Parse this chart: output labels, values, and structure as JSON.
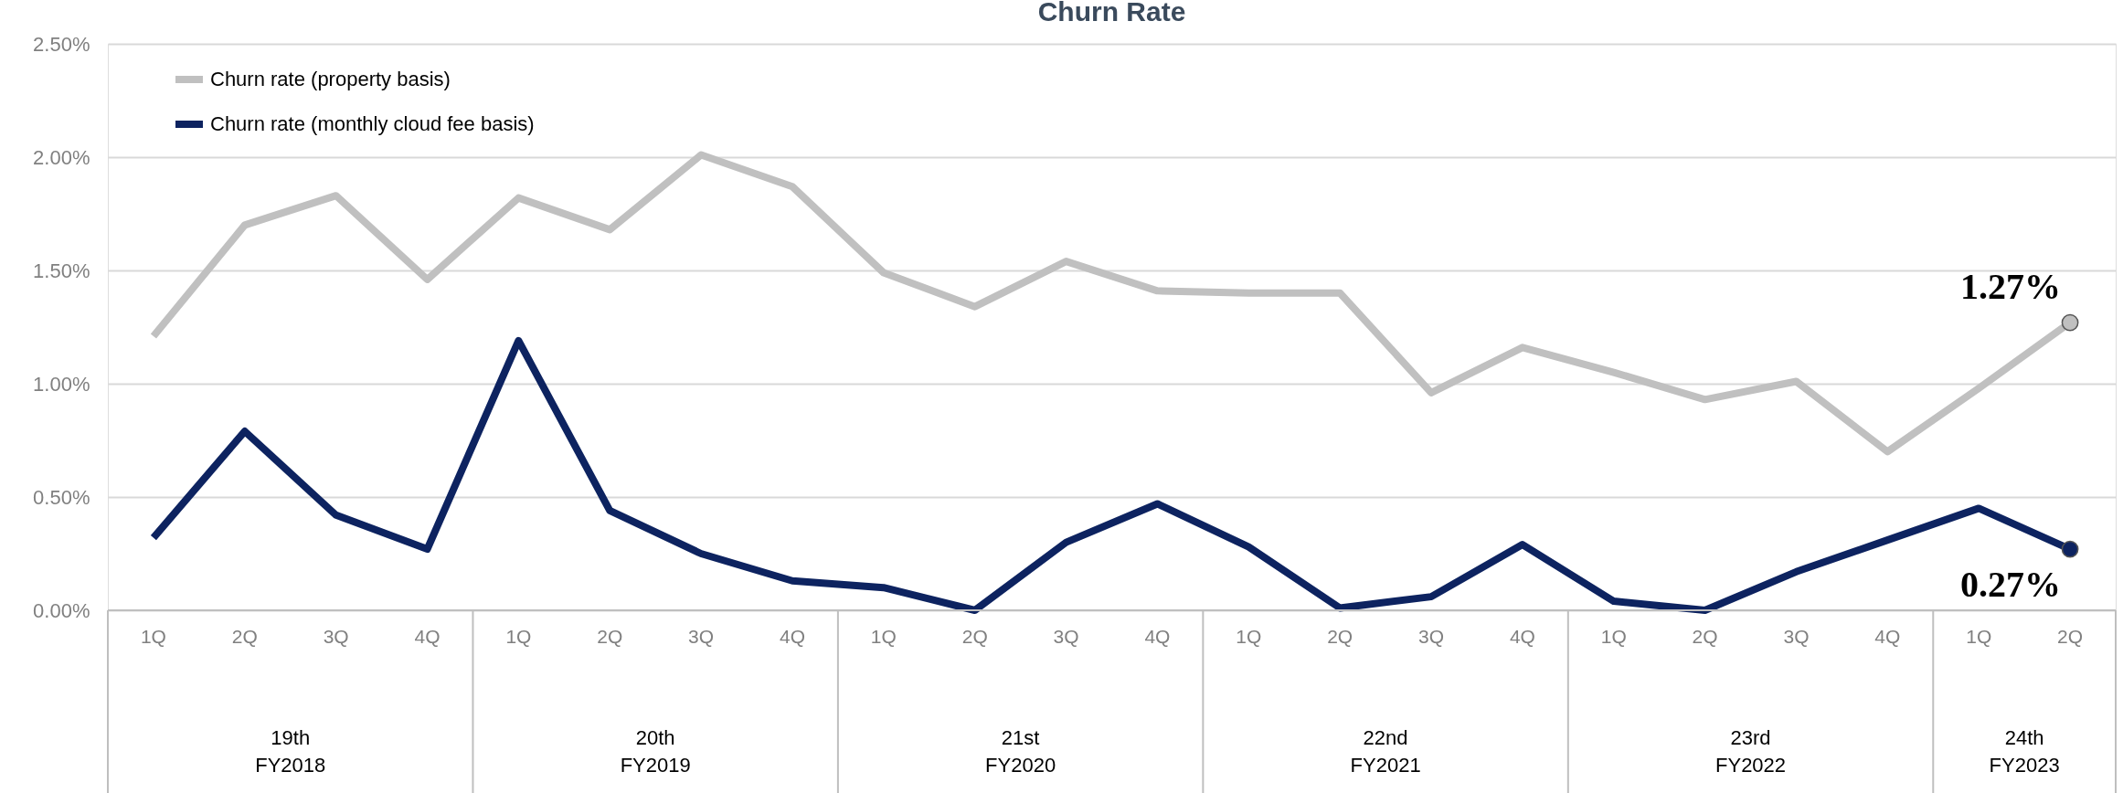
{
  "chart_data": {
    "type": "line",
    "title": "Churn Rate",
    "categories": [
      "1Q",
      "2Q",
      "3Q",
      "4Q",
      "1Q",
      "2Q",
      "3Q",
      "4Q",
      "1Q",
      "2Q",
      "3Q",
      "4Q",
      "1Q",
      "2Q",
      "3Q",
      "4Q",
      "1Q",
      "2Q",
      "3Q",
      "4Q",
      "1Q",
      "2Q"
    ],
    "annotations": [
      "19th\nFY2018",
      "20th\nFY2019",
      "21st\nFY2020",
      "22nd\nFY2021",
      "23rd\nFY2022",
      "24th\nFY2023"
    ],
    "series": [
      {
        "name": "Churn rate (property basis)",
        "color": "#c0c0c0",
        "values": [
          1.21,
          1.7,
          1.83,
          1.46,
          1.82,
          1.68,
          2.01,
          1.87,
          1.49,
          1.34,
          1.54,
          1.41,
          1.4,
          1.4,
          0.96,
          1.16,
          1.05,
          0.93,
          1.01,
          0.7,
          0.98,
          1.27
        ],
        "value_labels": [
          null,
          null,
          null,
          null,
          null,
          null,
          null,
          null,
          null,
          null,
          null,
          null,
          null,
          null,
          null,
          null,
          null,
          null,
          null,
          null,
          null,
          "1.27%"
        ]
      },
      {
        "name": "Churn rate (monthly cloud fee basis)",
        "color": "#0d2360",
        "values": [
          0.32,
          0.79,
          0.42,
          0.27,
          1.19,
          0.44,
          0.25,
          0.13,
          0.1,
          0.0,
          0.3,
          0.47,
          0.28,
          0.01,
          0.06,
          0.29,
          0.04,
          0.0,
          0.17,
          0.31,
          0.45,
          0.27
        ],
        "value_labels": [
          null,
          null,
          null,
          null,
          null,
          null,
          null,
          null,
          null,
          null,
          null,
          null,
          null,
          null,
          null,
          null,
          null,
          null,
          null,
          null,
          null,
          "0.27%"
        ]
      }
    ],
    "ylim": [
      0,
      2.5
    ],
    "yticks": [
      {
        "value": 0,
        "label": "0.00%"
      },
      {
        "value": 0.5,
        "label": "0.50%"
      },
      {
        "value": 1,
        "label": "1.00%"
      },
      {
        "value": 1.5,
        "label": "1.50%"
      },
      {
        "value": 2,
        "label": "2.00%"
      },
      {
        "value": 2.5,
        "label": "2.50%"
      }
    ],
    "grid": "y",
    "legend": "top left",
    "line_style": "solid"
  }
}
